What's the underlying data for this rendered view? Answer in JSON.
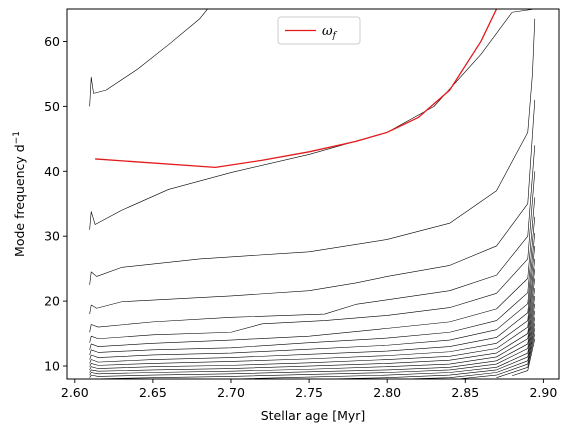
{
  "chart_data": {
    "type": "line",
    "title": "",
    "xlabel": "Stellar age [Myr]",
    "ylabel": "Mode frequency d",
    "ylabel_superscript": "−1",
    "xlim": [
      2.595,
      2.91
    ],
    "ylim": [
      8,
      65
    ],
    "xticks": [
      2.6,
      2.65,
      2.7,
      2.75,
      2.8,
      2.85,
      2.9
    ],
    "xtick_labels": [
      "2.60",
      "2.65",
      "2.70",
      "2.75",
      "2.80",
      "2.85",
      "2.90"
    ],
    "yticks": [
      10,
      20,
      30,
      40,
      50,
      60
    ],
    "ytick_labels": [
      "10",
      "20",
      "30",
      "40",
      "50",
      "60"
    ],
    "grid": false,
    "legend": {
      "placement": "upper-center",
      "entries": [
        {
          "label": "ω",
          "subscript": "f",
          "color": "#e31a1c"
        }
      ]
    },
    "colors": {
      "modes": "#000000",
      "highlight": "#e31a1c"
    },
    "mode_series_count": 22,
    "series": [
      {
        "name": "ω_f",
        "color": "#e31a1c",
        "points": [
          [
            2.613,
            41.9
          ],
          [
            2.69,
            40.6
          ],
          [
            2.72,
            41.7
          ],
          [
            2.75,
            43.0
          ],
          [
            2.78,
            44.6
          ],
          [
            2.8,
            46.0
          ],
          [
            2.82,
            48.3
          ],
          [
            2.84,
            52.5
          ],
          [
            2.86,
            60.0
          ],
          [
            2.87,
            65.0
          ]
        ]
      },
      {
        "name": "",
        "color": "#000000",
        "points": [
          [
            2.6095,
            50.0
          ],
          [
            2.6105,
            54.5
          ],
          [
            2.612,
            52.0
          ],
          [
            2.62,
            52.5
          ],
          [
            2.64,
            55.7
          ],
          [
            2.66,
            59.5
          ],
          [
            2.68,
            63.5
          ],
          [
            2.685,
            65.0
          ]
        ]
      },
      {
        "name": "",
        "color": "#000000",
        "points": [
          [
            2.6095,
            31.0
          ],
          [
            2.6105,
            33.8
          ],
          [
            2.613,
            31.8
          ],
          [
            2.63,
            34.0
          ],
          [
            2.66,
            37.2
          ],
          [
            2.7,
            39.8
          ],
          [
            2.75,
            42.6
          ],
          [
            2.8,
            46.0
          ],
          [
            2.83,
            50.0
          ],
          [
            2.86,
            58.0
          ],
          [
            2.88,
            64.5
          ],
          [
            2.8945,
            65.0
          ]
        ]
      },
      {
        "name": "",
        "color": "#000000",
        "points": [
          [
            2.6095,
            22.5
          ],
          [
            2.6105,
            24.5
          ],
          [
            2.614,
            23.8
          ],
          [
            2.63,
            25.2
          ],
          [
            2.68,
            26.5
          ],
          [
            2.75,
            27.6
          ],
          [
            2.8,
            29.5
          ],
          [
            2.84,
            32.0
          ],
          [
            2.87,
            37.0
          ],
          [
            2.89,
            46.0
          ],
          [
            2.893,
            55.0
          ],
          [
            2.8945,
            63.5
          ]
        ]
      },
      {
        "name": "",
        "color": "#000000",
        "points": [
          [
            2.6095,
            18.0
          ],
          [
            2.6105,
            19.4
          ],
          [
            2.614,
            18.9
          ],
          [
            2.63,
            19.9
          ],
          [
            2.7,
            20.8
          ],
          [
            2.75,
            21.6
          ],
          [
            2.78,
            22.8
          ],
          [
            2.8,
            23.8
          ],
          [
            2.84,
            25.5
          ],
          [
            2.87,
            28.5
          ],
          [
            2.89,
            35.0
          ],
          [
            2.8945,
            51.0
          ]
        ]
      },
      {
        "name": "",
        "color": "#000000",
        "points": [
          [
            2.6095,
            15.2
          ],
          [
            2.6105,
            16.4
          ],
          [
            2.615,
            16.0
          ],
          [
            2.65,
            16.8
          ],
          [
            2.7,
            17.5
          ],
          [
            2.76,
            18.0
          ],
          [
            2.78,
            19.5
          ],
          [
            2.8,
            20.2
          ],
          [
            2.84,
            21.6
          ],
          [
            2.87,
            24.0
          ],
          [
            2.89,
            30.0
          ],
          [
            2.8945,
            44.0
          ]
        ]
      },
      {
        "name": "",
        "color": "#000000",
        "points": [
          [
            2.6095,
            13.6
          ],
          [
            2.6105,
            14.6
          ],
          [
            2.615,
            14.2
          ],
          [
            2.65,
            14.8
          ],
          [
            2.7,
            15.2
          ],
          [
            2.72,
            16.5
          ],
          [
            2.76,
            17.0
          ],
          [
            2.8,
            17.8
          ],
          [
            2.84,
            19.0
          ],
          [
            2.87,
            21.2
          ],
          [
            2.89,
            26.5
          ],
          [
            2.8945,
            40.0
          ]
        ]
      },
      {
        "name": "",
        "color": "#000000",
        "points": [
          [
            2.6095,
            12.5
          ],
          [
            2.6105,
            13.4
          ],
          [
            2.615,
            13.0
          ],
          [
            2.65,
            13.5
          ],
          [
            2.7,
            14.0
          ],
          [
            2.75,
            14.6
          ],
          [
            2.8,
            15.8
          ],
          [
            2.84,
            16.8
          ],
          [
            2.87,
            18.8
          ],
          [
            2.89,
            23.5
          ],
          [
            2.8945,
            36.0
          ]
        ]
      },
      {
        "name": "",
        "color": "#000000",
        "points": [
          [
            2.6095,
            11.7
          ],
          [
            2.6105,
            12.5
          ],
          [
            2.615,
            12.1
          ],
          [
            2.65,
            12.5
          ],
          [
            2.7,
            12.8
          ],
          [
            2.75,
            13.6
          ],
          [
            2.8,
            14.3
          ],
          [
            2.84,
            15.2
          ],
          [
            2.87,
            17.0
          ],
          [
            2.89,
            21.3
          ],
          [
            2.8945,
            33.0
          ]
        ]
      },
      {
        "name": "",
        "color": "#000000",
        "points": [
          [
            2.6095,
            11.0
          ],
          [
            2.6105,
            11.7
          ],
          [
            2.615,
            11.3
          ],
          [
            2.65,
            11.7
          ],
          [
            2.7,
            12.0
          ],
          [
            2.75,
            12.6
          ],
          [
            2.8,
            13.2
          ],
          [
            2.84,
            14.0
          ],
          [
            2.87,
            15.6
          ],
          [
            2.89,
            19.6
          ],
          [
            2.8945,
            30.5
          ]
        ]
      },
      {
        "name": "",
        "color": "#000000",
        "points": [
          [
            2.6095,
            10.4
          ],
          [
            2.6105,
            11.0
          ],
          [
            2.615,
            10.6
          ],
          [
            2.65,
            11.0
          ],
          [
            2.7,
            11.3
          ],
          [
            2.75,
            11.8
          ],
          [
            2.8,
            12.3
          ],
          [
            2.84,
            13.0
          ],
          [
            2.87,
            14.4
          ],
          [
            2.89,
            18.2
          ],
          [
            2.8945,
            28.5
          ]
        ]
      },
      {
        "name": "",
        "color": "#000000",
        "points": [
          [
            2.6095,
            9.9
          ],
          [
            2.6105,
            10.4
          ],
          [
            2.615,
            10.1
          ],
          [
            2.65,
            10.4
          ],
          [
            2.7,
            10.7
          ],
          [
            2.75,
            11.1
          ],
          [
            2.8,
            11.6
          ],
          [
            2.84,
            12.2
          ],
          [
            2.87,
            13.5
          ],
          [
            2.89,
            17.0
          ],
          [
            2.8945,
            26.5
          ]
        ]
      },
      {
        "name": "",
        "color": "#000000",
        "points": [
          [
            2.6095,
            9.4
          ],
          [
            2.6105,
            9.9
          ],
          [
            2.615,
            9.6
          ],
          [
            2.65,
            9.9
          ],
          [
            2.7,
            10.1
          ],
          [
            2.75,
            10.5
          ],
          [
            2.8,
            11.0
          ],
          [
            2.84,
            11.5
          ],
          [
            2.87,
            12.7
          ],
          [
            2.89,
            16.0
          ],
          [
            2.8945,
            25.0
          ]
        ]
      },
      {
        "name": "",
        "color": "#000000",
        "points": [
          [
            2.6095,
            9.0
          ],
          [
            2.6105,
            9.4
          ],
          [
            2.615,
            9.2
          ],
          [
            2.65,
            9.4
          ],
          [
            2.7,
            9.6
          ],
          [
            2.75,
            10.0
          ],
          [
            2.8,
            10.4
          ],
          [
            2.84,
            10.9
          ],
          [
            2.87,
            12.0
          ],
          [
            2.89,
            15.0
          ],
          [
            2.8945,
            23.5
          ]
        ]
      },
      {
        "name": "",
        "color": "#000000",
        "points": [
          [
            2.6095,
            8.6
          ],
          [
            2.6105,
            9.0
          ],
          [
            2.615,
            8.8
          ],
          [
            2.65,
            9.0
          ],
          [
            2.7,
            9.2
          ],
          [
            2.75,
            9.5
          ],
          [
            2.8,
            9.9
          ],
          [
            2.84,
            10.3
          ],
          [
            2.87,
            11.4
          ],
          [
            2.89,
            14.2
          ],
          [
            2.8945,
            22.0
          ]
        ]
      },
      {
        "name": "",
        "color": "#000000",
        "points": [
          [
            2.6095,
            8.2
          ],
          [
            2.6105,
            8.6
          ],
          [
            2.615,
            8.4
          ],
          [
            2.65,
            8.6
          ],
          [
            2.7,
            8.8
          ],
          [
            2.75,
            9.1
          ],
          [
            2.8,
            9.4
          ],
          [
            2.84,
            9.8
          ],
          [
            2.87,
            10.8
          ],
          [
            2.89,
            13.4
          ],
          [
            2.8945,
            20.8
          ]
        ]
      },
      {
        "name": "",
        "color": "#000000",
        "points": [
          [
            2.6095,
            8.0
          ],
          [
            2.65,
            8.2
          ],
          [
            2.7,
            8.4
          ],
          [
            2.75,
            8.7
          ],
          [
            2.8,
            9.0
          ],
          [
            2.84,
            9.4
          ],
          [
            2.87,
            10.3
          ],
          [
            2.89,
            12.7
          ],
          [
            2.8945,
            19.6
          ]
        ]
      },
      {
        "name": "",
        "color": "#000000",
        "points": [
          [
            2.7,
            8.0
          ],
          [
            2.75,
            8.3
          ],
          [
            2.8,
            8.6
          ],
          [
            2.84,
            9.0
          ],
          [
            2.87,
            9.8
          ],
          [
            2.89,
            12.0
          ],
          [
            2.8945,
            18.5
          ]
        ]
      },
      {
        "name": "",
        "color": "#000000",
        "points": [
          [
            2.76,
            8.0
          ],
          [
            2.8,
            8.2
          ],
          [
            2.84,
            8.6
          ],
          [
            2.87,
            9.4
          ],
          [
            2.89,
            11.4
          ],
          [
            2.8945,
            17.5
          ]
        ]
      },
      {
        "name": "",
        "color": "#000000",
        "points": [
          [
            2.81,
            8.0
          ],
          [
            2.84,
            8.2
          ],
          [
            2.87,
            9.0
          ],
          [
            2.89,
            10.8
          ],
          [
            2.8945,
            16.6
          ]
        ]
      },
      {
        "name": "",
        "color": "#000000",
        "points": [
          [
            2.845,
            8.0
          ],
          [
            2.87,
            8.6
          ],
          [
            2.89,
            10.3
          ],
          [
            2.8945,
            15.8
          ]
        ]
      },
      {
        "name": "",
        "color": "#000000",
        "points": [
          [
            2.87,
            8.2
          ],
          [
            2.89,
            9.8
          ],
          [
            2.8945,
            15.0
          ]
        ]
      },
      {
        "name": "",
        "color": "#000000",
        "points": [
          [
            2.88,
            8.5
          ],
          [
            2.89,
            9.3
          ],
          [
            2.8945,
            14.2
          ]
        ]
      }
    ]
  }
}
